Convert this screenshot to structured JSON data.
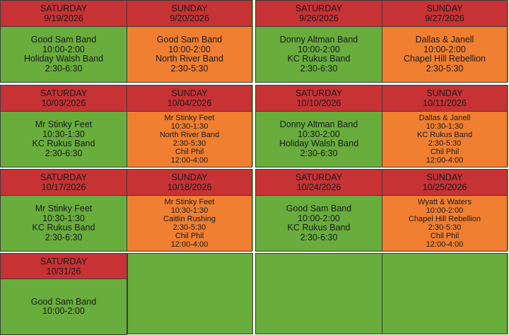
{
  "blocks": [
    {
      "days": [
        {
          "day": "SATURDAY",
          "date": "9/19/2026",
          "events": [
            "Good Sam Band",
            "10:00-2:00",
            "Holiday Walsh Band",
            "2:30-6:30"
          ]
        },
        {
          "day": "SUNDAY",
          "date": "9/20/2026",
          "events": [
            "Good Sam Band",
            "10:00-2:00",
            "North River Band",
            "2:30-5:30"
          ]
        }
      ]
    },
    {
      "days": [
        {
          "day": "SATURDAY",
          "date": "9/26/2026",
          "events": [
            "Donny Altman Band",
            "10:00-2:00",
            "KC Rukus Band",
            "2:30-6:30"
          ]
        },
        {
          "day": "SUNDAY",
          "date": "9/27/2026",
          "events": [
            "Dallas & Janell",
            "10:00-2:00",
            "Chapel Hill Rebellion",
            "2:30-5:30"
          ]
        }
      ]
    },
    {
      "days": [
        {
          "day": "SATURDAY",
          "date": "10/03/2026",
          "events": [
            "Mr Stinky Feet",
            "10:30-1:30",
            "KC Rukus Band",
            "2:30-6:30"
          ]
        },
        {
          "day": "SUNDAY",
          "date": "10/04/2026",
          "events": [
            "Mr Stinky Feet",
            "10:30-1:30",
            "North River Band",
            "2:30-5:30",
            "Chil Phil",
            "12:00-4:00"
          ]
        }
      ]
    },
    {
      "days": [
        {
          "day": "SATURDAY",
          "date": "10/10/2026",
          "events": [
            "Donny Altman Band",
            "10:30-2:00",
            "Holiday Walsh Band",
            "2:30-6:30"
          ]
        },
        {
          "day": "SUNDAY",
          "date": "10/11/2026",
          "events": [
            "Dallas & Janell",
            "10:30-1:30",
            "KC Rukus Band",
            "2:30-5:30",
            "Chil Phil",
            "12:00-4:00"
          ]
        }
      ]
    },
    {
      "days": [
        {
          "day": "SATURDAY",
          "date": "10/17/2026",
          "events": [
            "Mr Stinky Feet",
            "10:30-1:30",
            "KC Rukus Band",
            "2:30-6:30"
          ]
        },
        {
          "day": "SUNDAY",
          "date": "10/18/2026",
          "events": [
            "Mr Stinky Feet",
            "10:30-1:30",
            "Caitlin Rushing",
            "2:30-5:30",
            "Chil Phil",
            "12:00-4:00"
          ]
        }
      ]
    },
    {
      "days": [
        {
          "day": "SATURDAY",
          "date": "10/24/2026",
          "events": [
            "Good Sam Band",
            "10:00-2:00",
            "KC Rukus Band",
            "2:30-6:30"
          ]
        },
        {
          "day": "SUNDAY",
          "date": "10/25/2026",
          "events": [
            "Wyatt & Waters",
            "10:00-2:00",
            "Chapel Hill Rebellion",
            "2:30-5:30",
            "Chil Phil",
            "12:00-4:00"
          ]
        }
      ]
    },
    {
      "days": [
        {
          "day": "SATURDAY",
          "date": "10/31/26",
          "events": [
            "Good Sam Band",
            "10:00-2:00"
          ]
        }
      ]
    }
  ],
  "colors": {
    "header": "#c73235",
    "saturday": "#69ad3d",
    "sunday": "#f07f31",
    "border": "#3b3b3b"
  }
}
